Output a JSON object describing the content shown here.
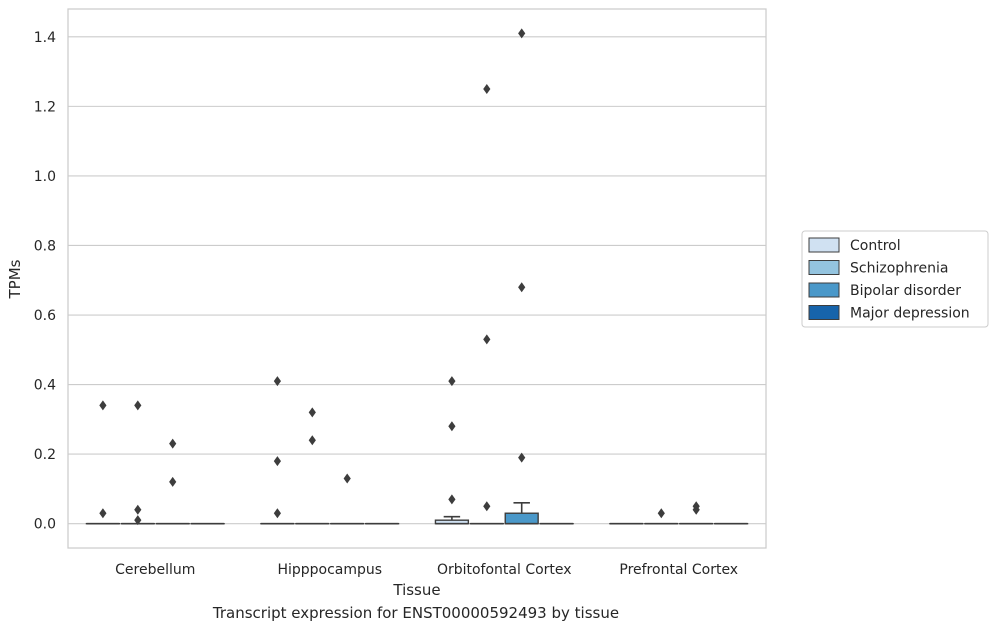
{
  "caption": "Transcript expression for ENST00000592493 by tissue",
  "chart_data": {
    "type": "boxplot",
    "title": "",
    "xlabel": "Tissue",
    "ylabel": "TPMs",
    "ylim": [
      -0.07,
      1.48
    ],
    "yticks": [
      0.0,
      0.2,
      0.4,
      0.6,
      0.8,
      1.0,
      1.2,
      1.4
    ],
    "ytick_labels": [
      "0.0",
      "0.2",
      "0.4",
      "0.6",
      "0.8",
      "1.0",
      "1.2",
      "1.4"
    ],
    "grid": "horizontal",
    "legend_position": "right",
    "categories": [
      "Cerebellum",
      "Hipppocampus",
      "Orbitofontal Cortex",
      "Prefrontal Cortex"
    ],
    "series": [
      {
        "name": "Control",
        "color": "#d0e1f2",
        "boxes": [
          {
            "q1": 0,
            "median": 0,
            "q3": 0,
            "whisker_low": 0,
            "whisker_high": 0,
            "outliers": [
              0.34,
              0.03
            ]
          },
          {
            "q1": 0,
            "median": 0,
            "q3": 0,
            "whisker_low": 0,
            "whisker_high": 0,
            "outliers": [
              0.41,
              0.18,
              0.03
            ]
          },
          {
            "q1": 0,
            "median": 0,
            "q3": 0.01,
            "whisker_low": 0,
            "whisker_high": 0.02,
            "outliers": [
              0.41,
              0.28,
              0.07
            ]
          },
          {
            "q1": 0,
            "median": 0,
            "q3": 0,
            "whisker_low": 0,
            "whisker_high": 0,
            "outliers": []
          }
        ]
      },
      {
        "name": "Schizophrenia",
        "color": "#94c4df",
        "boxes": [
          {
            "q1": 0,
            "median": 0,
            "q3": 0,
            "whisker_low": 0,
            "whisker_high": 0,
            "outliers": [
              0.34,
              0.04,
              0.01
            ]
          },
          {
            "q1": 0,
            "median": 0,
            "q3": 0,
            "whisker_low": 0,
            "whisker_high": 0,
            "outliers": [
              0.32,
              0.24
            ]
          },
          {
            "q1": 0,
            "median": 0,
            "q3": 0,
            "whisker_low": 0,
            "whisker_high": 0,
            "outliers": [
              1.25,
              0.53,
              0.05
            ]
          },
          {
            "q1": 0,
            "median": 0,
            "q3": 0,
            "whisker_low": 0,
            "whisker_high": 0,
            "outliers": [
              0.03
            ]
          }
        ]
      },
      {
        "name": "Bipolar disorder",
        "color": "#4a98c9",
        "boxes": [
          {
            "q1": 0,
            "median": 0,
            "q3": 0,
            "whisker_low": 0,
            "whisker_high": 0,
            "outliers": [
              0.23,
              0.12
            ]
          },
          {
            "q1": 0,
            "median": 0,
            "q3": 0,
            "whisker_low": 0,
            "whisker_high": 0,
            "outliers": [
              0.13
            ]
          },
          {
            "q1": 0,
            "median": 0,
            "q3": 0.03,
            "whisker_low": 0,
            "whisker_high": 0.06,
            "outliers": [
              1.41,
              0.68,
              0.19
            ]
          },
          {
            "q1": 0,
            "median": 0,
            "q3": 0,
            "whisker_low": 0,
            "whisker_high": 0,
            "outliers": [
              0.05,
              0.04
            ]
          }
        ]
      },
      {
        "name": "Major depression",
        "color": "#1764ab",
        "boxes": [
          {
            "q1": 0,
            "median": 0,
            "q3": 0,
            "whisker_low": 0,
            "whisker_high": 0,
            "outliers": []
          },
          {
            "q1": 0,
            "median": 0,
            "q3": 0,
            "whisker_low": 0,
            "whisker_high": 0,
            "outliers": []
          },
          {
            "q1": 0,
            "median": 0,
            "q3": 0,
            "whisker_low": 0,
            "whisker_high": 0,
            "outliers": []
          },
          {
            "q1": 0,
            "median": 0,
            "q3": 0,
            "whisker_low": 0,
            "whisker_high": 0,
            "outliers": []
          }
        ]
      }
    ]
  }
}
